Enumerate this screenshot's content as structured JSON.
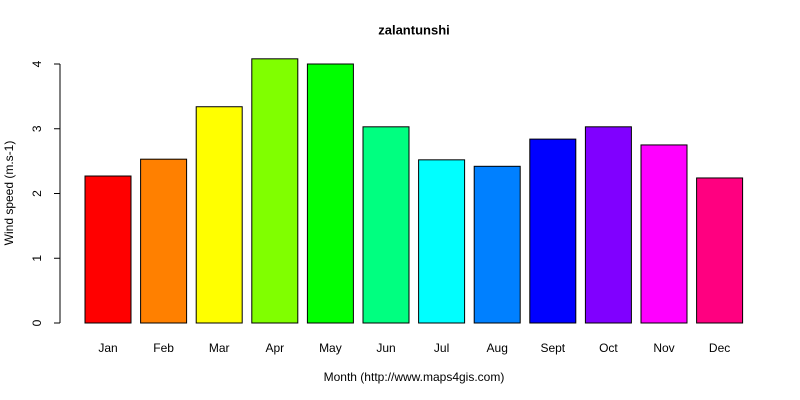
{
  "chart_data": {
    "type": "bar",
    "title": "zalantunshi",
    "x_label": "Month (http://www.maps4gis.com)",
    "y_label": "Wind speed (m.s-1)",
    "categories": [
      "Jan",
      "Feb",
      "Mar",
      "Apr",
      "May",
      "Jun",
      "Jul",
      "Aug",
      "Sept",
      "Oct",
      "Nov",
      "Dec"
    ],
    "values": [
      2.27,
      2.53,
      3.34,
      4.08,
      4.0,
      3.03,
      2.52,
      2.42,
      2.84,
      3.03,
      2.75,
      2.24
    ],
    "colors": [
      "#FF0000",
      "#FF8000",
      "#FFFF00",
      "#80FF00",
      "#00FF00",
      "#00FF80",
      "#00FFFF",
      "#0080FF",
      "#0000FF",
      "#8000FF",
      "#FF00FF",
      "#FF0080"
    ],
    "ylim": [
      0,
      4
    ],
    "yticks": [
      0,
      1,
      2,
      3,
      4
    ]
  }
}
